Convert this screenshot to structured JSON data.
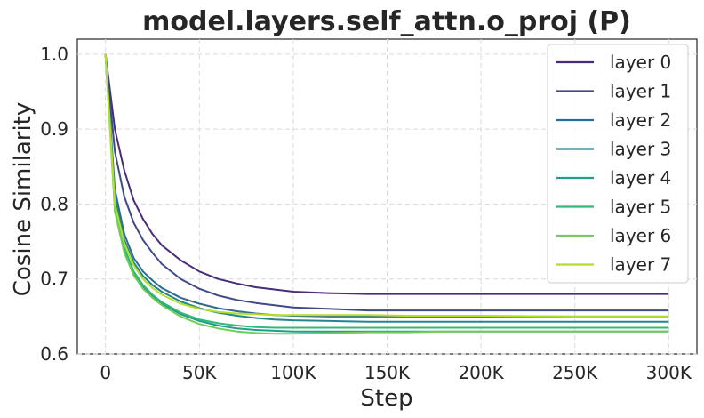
{
  "chart_data": {
    "type": "line",
    "title": "model.layers.self_attn.o_proj (P)",
    "xlabel": "Step",
    "ylabel": "Cosine Similarity",
    "xlim": [
      -15000,
      315000
    ],
    "ylim": [
      0.6,
      1.02
    ],
    "xticks": [
      0,
      50000,
      100000,
      150000,
      200000,
      250000,
      300000
    ],
    "xtick_labels": [
      "0",
      "50K",
      "100K",
      "150K",
      "200K",
      "250K",
      "300K"
    ],
    "yticks": [
      0.6,
      0.7,
      0.8,
      0.9,
      1.0
    ],
    "ytick_labels": [
      "0.6",
      "0.7",
      "0.8",
      "0.9",
      "1.0"
    ],
    "grid": true,
    "legend_position": "top-right",
    "series": [
      {
        "name": "layer 0",
        "color": "#472c7a",
        "x": [
          0,
          5000,
          10000,
          15000,
          20000,
          25000,
          30000,
          40000,
          50000,
          60000,
          70000,
          80000,
          90000,
          100000,
          120000,
          140000,
          160000,
          180000,
          200000,
          250000,
          300000
        ],
        "y": [
          1.0,
          0.9,
          0.845,
          0.805,
          0.78,
          0.76,
          0.745,
          0.725,
          0.71,
          0.7,
          0.694,
          0.689,
          0.686,
          0.683,
          0.681,
          0.68,
          0.68,
          0.68,
          0.68,
          0.68,
          0.68
        ]
      },
      {
        "name": "layer 1",
        "color": "#3f4a89",
        "x": [
          0,
          5000,
          10000,
          15000,
          20000,
          25000,
          30000,
          40000,
          50000,
          60000,
          70000,
          80000,
          90000,
          100000,
          120000,
          140000,
          160000,
          180000,
          200000,
          250000,
          300000
        ],
        "y": [
          1.0,
          0.87,
          0.81,
          0.775,
          0.752,
          0.735,
          0.72,
          0.7,
          0.687,
          0.678,
          0.672,
          0.668,
          0.665,
          0.662,
          0.66,
          0.658,
          0.658,
          0.658,
          0.658,
          0.658,
          0.658
        ]
      },
      {
        "name": "layer 2",
        "color": "#2f6b8e",
        "x": [
          0,
          5000,
          10000,
          15000,
          20000,
          25000,
          30000,
          40000,
          50000,
          60000,
          70000,
          80000,
          90000,
          100000,
          120000,
          140000,
          160000,
          180000,
          200000,
          250000,
          300000
        ],
        "y": [
          1.0,
          0.82,
          0.76,
          0.728,
          0.71,
          0.698,
          0.688,
          0.675,
          0.667,
          0.661,
          0.657,
          0.654,
          0.652,
          0.651,
          0.65,
          0.65,
          0.65,
          0.65,
          0.65,
          0.65,
          0.65
        ]
      },
      {
        "name": "layer 3",
        "color": "#23858e",
        "x": [
          0,
          5000,
          10000,
          15000,
          20000,
          25000,
          30000,
          40000,
          50000,
          60000,
          70000,
          80000,
          90000,
          100000,
          120000,
          140000,
          160000,
          180000,
          200000,
          250000,
          300000
        ],
        "y": [
          1.0,
          0.81,
          0.752,
          0.722,
          0.704,
          0.692,
          0.683,
          0.67,
          0.661,
          0.655,
          0.651,
          0.648,
          0.646,
          0.645,
          0.644,
          0.643,
          0.643,
          0.643,
          0.643,
          0.643,
          0.643
        ]
      },
      {
        "name": "layer 4",
        "color": "#1f9e89",
        "x": [
          0,
          5000,
          10000,
          15000,
          20000,
          25000,
          30000,
          40000,
          50000,
          60000,
          70000,
          80000,
          90000,
          100000,
          120000,
          140000,
          160000,
          180000,
          200000,
          250000,
          300000
        ],
        "y": [
          1.0,
          0.8,
          0.74,
          0.708,
          0.69,
          0.677,
          0.667,
          0.653,
          0.644,
          0.638,
          0.634,
          0.632,
          0.631,
          0.63,
          0.63,
          0.63,
          0.63,
          0.63,
          0.63,
          0.63,
          0.63
        ]
      },
      {
        "name": "layer 5",
        "color": "#35b779",
        "x": [
          0,
          5000,
          10000,
          15000,
          20000,
          25000,
          30000,
          40000,
          50000,
          60000,
          70000,
          80000,
          90000,
          100000,
          120000,
          140000,
          160000,
          180000,
          200000,
          250000,
          300000
        ],
        "y": [
          1.0,
          0.8,
          0.742,
          0.71,
          0.692,
          0.679,
          0.669,
          0.655,
          0.646,
          0.641,
          0.638,
          0.636,
          0.635,
          0.635,
          0.635,
          0.635,
          0.635,
          0.635,
          0.635,
          0.635,
          0.635
        ]
      },
      {
        "name": "layer 6",
        "color": "#6ece58",
        "x": [
          0,
          5000,
          10000,
          15000,
          20000,
          25000,
          30000,
          40000,
          50000,
          60000,
          70000,
          80000,
          90000,
          100000,
          120000,
          140000,
          160000,
          180000,
          200000,
          250000,
          300000
        ],
        "y": [
          1.0,
          0.79,
          0.735,
          0.705,
          0.687,
          0.675,
          0.665,
          0.65,
          0.64,
          0.634,
          0.63,
          0.628,
          0.627,
          0.627,
          0.628,
          0.629,
          0.629,
          0.63,
          0.63,
          0.63,
          0.63
        ]
      },
      {
        "name": "layer 7",
        "color": "#b5de2b",
        "x": [
          0,
          5000,
          10000,
          15000,
          20000,
          25000,
          30000,
          40000,
          50000,
          60000,
          70000,
          80000,
          90000,
          100000,
          120000,
          140000,
          160000,
          180000,
          200000,
          250000,
          300000
        ],
        "y": [
          1.0,
          0.8,
          0.748,
          0.718,
          0.7,
          0.688,
          0.679,
          0.667,
          0.66,
          0.656,
          0.654,
          0.653,
          0.652,
          0.652,
          0.652,
          0.652,
          0.651,
          0.651,
          0.651,
          0.65,
          0.65
        ]
      }
    ]
  }
}
